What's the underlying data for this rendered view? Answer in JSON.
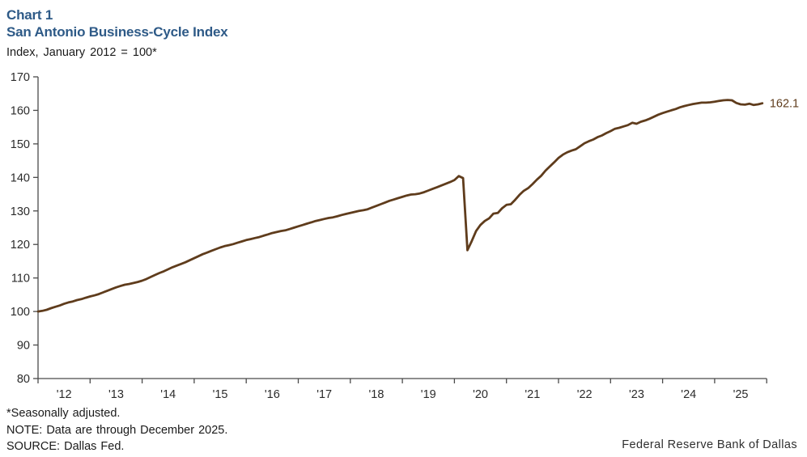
{
  "header": {
    "chart_label": "Chart 1",
    "title": "San Antonio Business-Cycle Index",
    "subtitle": "Index, January 2012 = 100*"
  },
  "chart_data": {
    "type": "line",
    "title": "San Antonio Business-Cycle Index",
    "xlabel": "",
    "ylabel": "Index, January 2012 = 100*",
    "ylim": [
      80,
      170
    ],
    "yticks": [
      80,
      90,
      100,
      110,
      120,
      130,
      140,
      150,
      160,
      170
    ],
    "xlim": [
      2012,
      2026
    ],
    "xtick_labels": [
      "'12",
      "'13",
      "'14",
      "'15",
      "'16",
      "'17",
      "'18",
      "'19",
      "'20",
      "'21",
      "'22",
      "'23",
      "'24",
      "'25"
    ],
    "grid": false,
    "legend_position": "none",
    "end_label": "162.1",
    "line_color": "#5F3C1C",
    "series": [
      {
        "name": "San Antonio Business-Cycle Index",
        "start_year": 2012,
        "frequency": "monthly",
        "values": [
          100.0,
          100.2,
          100.5,
          101.0,
          101.4,
          101.8,
          102.3,
          102.7,
          103.0,
          103.4,
          103.7,
          104.1,
          104.5,
          104.8,
          105.2,
          105.7,
          106.2,
          106.7,
          107.2,
          107.6,
          108.0,
          108.2,
          108.5,
          108.8,
          109.2,
          109.7,
          110.3,
          110.9,
          111.5,
          112.0,
          112.6,
          113.2,
          113.7,
          114.2,
          114.7,
          115.3,
          115.9,
          116.5,
          117.1,
          117.6,
          118.1,
          118.6,
          119.1,
          119.5,
          119.8,
          120.1,
          120.5,
          120.9,
          121.3,
          121.6,
          121.9,
          122.2,
          122.6,
          123.0,
          123.4,
          123.7,
          124.0,
          124.2,
          124.6,
          125.0,
          125.4,
          125.8,
          126.2,
          126.6,
          127.0,
          127.3,
          127.6,
          127.9,
          128.1,
          128.4,
          128.8,
          129.1,
          129.4,
          129.7,
          130.0,
          130.2,
          130.5,
          131.0,
          131.5,
          132.0,
          132.5,
          133.0,
          133.4,
          133.8,
          134.2,
          134.6,
          134.9,
          135.0,
          135.2,
          135.6,
          136.1,
          136.6,
          137.1,
          137.6,
          138.1,
          138.6,
          139.2,
          140.4,
          139.8,
          118.3,
          121.0,
          124.0,
          125.8,
          127.0,
          127.8,
          129.2,
          129.4,
          130.8,
          131.8,
          132.0,
          133.3,
          134.8,
          136.0,
          136.8,
          138.0,
          139.3,
          140.5,
          142.0,
          143.3,
          144.5,
          145.8,
          146.8,
          147.5,
          148.0,
          148.4,
          149.3,
          150.2,
          150.8,
          151.3,
          152.0,
          152.5,
          153.2,
          153.8,
          154.5,
          154.8,
          155.2,
          155.6,
          156.3,
          156.0,
          156.6,
          157.0,
          157.5,
          158.1,
          158.7,
          159.2,
          159.6,
          160.0,
          160.4,
          160.9,
          161.3,
          161.6,
          161.9,
          162.1,
          162.3,
          162.3,
          162.4,
          162.6,
          162.8,
          163.0,
          163.1,
          163.0,
          162.2,
          161.8,
          161.7,
          162.0,
          161.6,
          161.8,
          162.1
        ]
      }
    ]
  },
  "footnotes": {
    "line1": "*Seasonally adjusted.",
    "line2": "NOTE: Data are through December 2025.",
    "line3": "SOURCE: Dallas Fed."
  },
  "branding": {
    "wordmark": "Federal Reserve Bank of Dallas"
  },
  "colors": {
    "title_blue": "#2E5A87",
    "line_brown": "#5F3C1C",
    "axis": "#4a4a4a",
    "tick_text": "#2b2b2b"
  }
}
